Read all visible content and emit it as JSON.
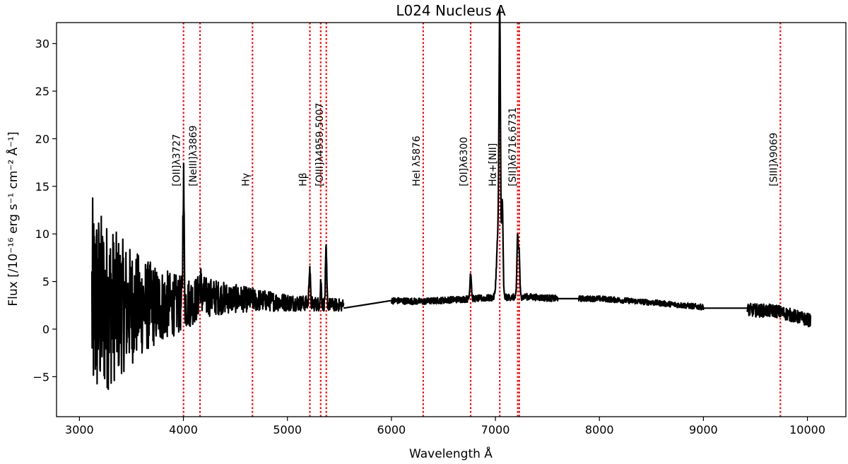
{
  "chart_data": {
    "type": "line",
    "title": "L024 Nucleus A",
    "xlabel": "Wavelength Å",
    "ylabel": "Flux  [/10⁻¹⁶ erg s⁻¹ cm⁻² Å⁻¹]",
    "xlim": [
      2780,
      10370
    ],
    "ylim": [
      -9.2,
      32.2
    ],
    "xticks": [
      3000,
      4000,
      5000,
      6000,
      7000,
      8000,
      9000,
      10000
    ],
    "yticks": [
      -5,
      0,
      5,
      10,
      15,
      20,
      25,
      30
    ],
    "grid": false,
    "series": [
      {
        "color": "#000000",
        "segments": [
          {
            "x_range": [
              3120,
              5540
            ],
            "noise_start_amp": 11,
            "noise_end_amp": 0.5,
            "continuum": [
              [
                3120,
                2.5
              ],
              [
                3500,
                2.4
              ],
              [
                4000,
                2.6
              ],
              [
                4200,
                3.4
              ],
              [
                4500,
                3.2
              ],
              [
                5000,
                2.8
              ],
              [
                5540,
                2.5
              ]
            ]
          },
          {
            "x_range": [
              5540,
              6000
            ],
            "continuum": [
              [
                5540,
                2.2
              ],
              [
                6000,
                3.0
              ]
            ]
          },
          {
            "x_range": [
              6000,
              7600
            ],
            "noise_amp": 0.35,
            "continuum": [
              [
                6000,
                3.0
              ],
              [
                6300,
                2.9
              ],
              [
                6600,
                3.1
              ],
              [
                7000,
                3.3
              ],
              [
                7300,
                3.4
              ],
              [
                7600,
                3.2
              ]
            ]
          },
          {
            "x_range": [
              7600,
              7800
            ],
            "continuum": [
              [
                7600,
                3.2
              ],
              [
                7800,
                3.2
              ]
            ]
          },
          {
            "x_range": [
              7800,
              9000
            ],
            "noise_amp": 0.3,
            "continuum": [
              [
                7800,
                3.2
              ],
              [
                8000,
                3.2
              ],
              [
                8500,
                2.8
              ],
              [
                9000,
                2.3
              ]
            ]
          },
          {
            "x_range": [
              9000,
              9420
            ],
            "continuum": [
              [
                9000,
                2.2
              ],
              [
                9420,
                2.2
              ]
            ]
          },
          {
            "x_range": [
              9420,
              10030
            ],
            "noise_amp": 0.7,
            "continuum": [
              [
                9420,
                2.0
              ],
              [
                9700,
                1.9
              ],
              [
                10030,
                0.9
              ]
            ]
          }
        ],
        "emission_peaks": [
          {
            "x": 4001,
            "peak": 15.8,
            "width": 6
          },
          {
            "x": 4160,
            "peak": 5.0,
            "width": 10
          },
          {
            "x": 5214,
            "peak": 6.7,
            "width": 6
          },
          {
            "x": 5322,
            "peak": 5.0,
            "width": 5
          },
          {
            "x": 5372,
            "peak": 8.2,
            "width": 6
          },
          {
            "x": 6762,
            "peak": 6.0,
            "width": 7
          },
          {
            "x": 7026,
            "peak": 10.0,
            "width": 14
          },
          {
            "x": 7042,
            "peak": 30.2,
            "width": 7
          },
          {
            "x": 7066,
            "peak": 13.5,
            "width": 7
          },
          {
            "x": 7213,
            "peak": 9.8,
            "width": 6
          },
          {
            "x": 7228,
            "peak": 8.2,
            "width": 6
          }
        ]
      }
    ],
    "annotations": {
      "line_color": "#ff0000",
      "lines": [
        {
          "x": 4001,
          "label": "[OII]λ3727"
        },
        {
          "x": 4160,
          "label": "[NeIII]λ3869"
        },
        {
          "x": 4664,
          "label": "Hγ"
        },
        {
          "x": 5216,
          "label": "Hβ"
        },
        {
          "x": 5320,
          "label": ""
        },
        {
          "x": 5374,
          "label": "[OIII]λ4959,5007"
        },
        {
          "x": 6306,
          "label": "HeI λ5876"
        },
        {
          "x": 6762,
          "label": "[OI]λ6300"
        },
        {
          "x": 7042,
          "label": "Hα+[NII]"
        },
        {
          "x": 7214,
          "label": ""
        },
        {
          "x": 7230,
          "label": "[SII]λ6716,6731"
        },
        {
          "x": 9740,
          "label": "[SIII]λ9069"
        }
      ]
    }
  }
}
